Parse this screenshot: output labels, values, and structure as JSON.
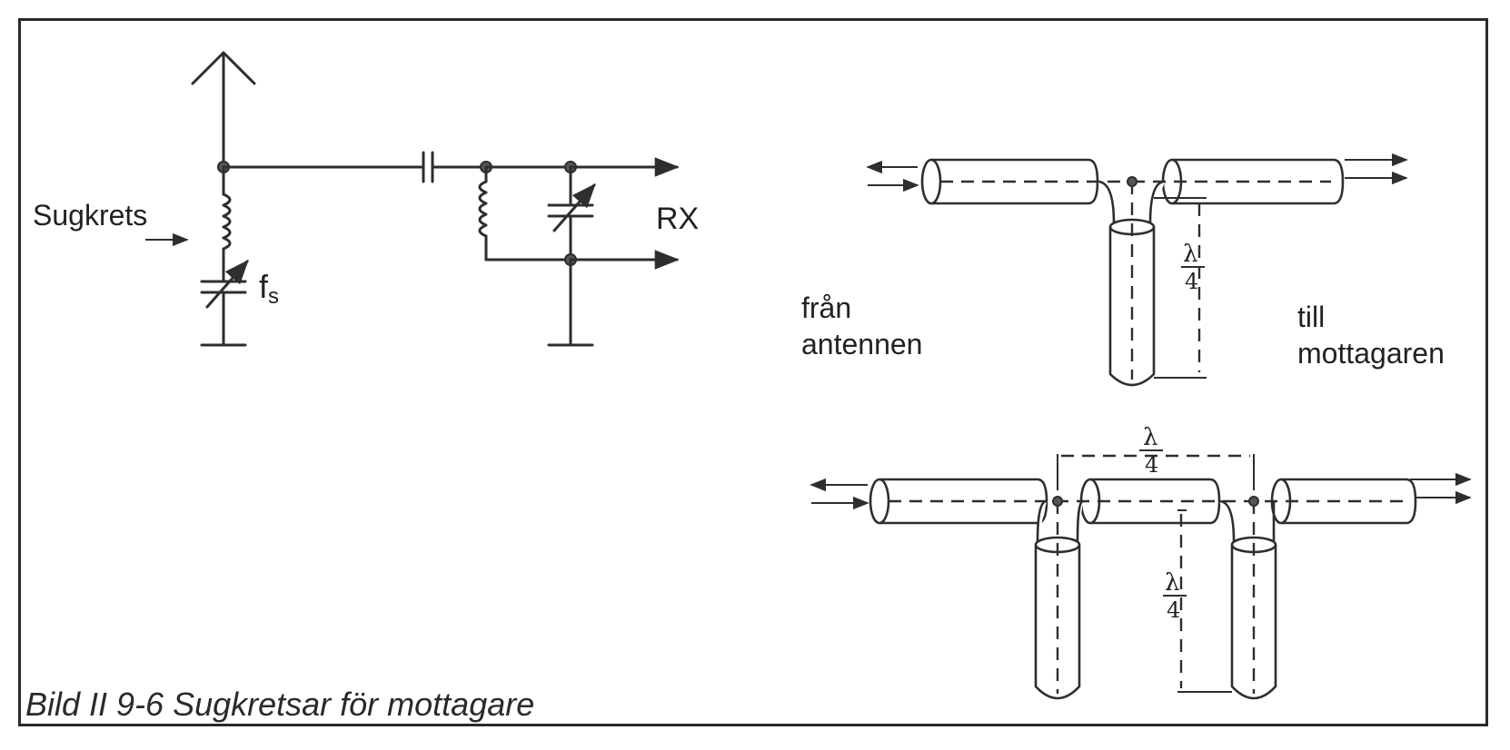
{
  "caption": "Bild II 9-6  Sugkretsar för mottagare",
  "circuit": {
    "label_sugkrets": "Sugkrets",
    "label_fs": "f",
    "label_fs_sub": "s",
    "label_rx": "RX"
  },
  "stub_single": {
    "label_from": [
      "från",
      "antennen"
    ],
    "label_to": [
      "till",
      "mottagaren"
    ],
    "lambda_label": "λ",
    "lambda_den": "4"
  },
  "stub_double": {
    "lambda_label": "λ",
    "lambda_den": "4"
  }
}
